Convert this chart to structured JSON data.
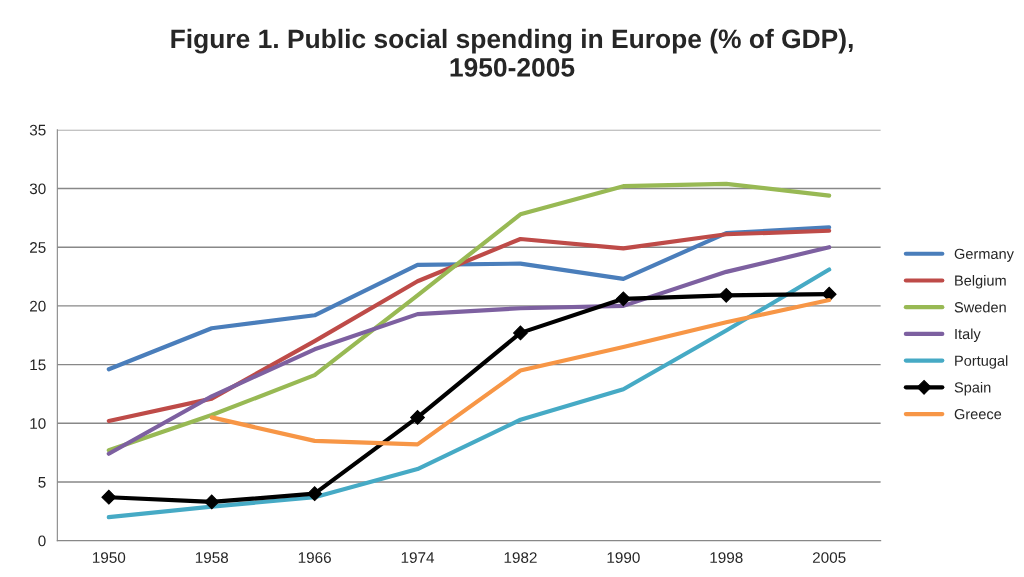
{
  "chart_data": {
    "type": "line",
    "title": "Figure 1. Public social spending in Europe (% of GDP),\n1950-2005",
    "categories": [
      "1950",
      "1958",
      "1966",
      "1974",
      "1982",
      "1990",
      "1998",
      "2005"
    ],
    "series": [
      {
        "name": "Germany",
        "color": "#4a7ebb",
        "values": [
          14.6,
          18.1,
          19.2,
          23.5,
          23.6,
          22.3,
          26.2,
          26.7
        ]
      },
      {
        "name": "Belgium",
        "color": "#be4b48",
        "values": [
          10.2,
          12.1,
          17.0,
          22.1,
          25.7,
          24.9,
          26.1,
          26.4
        ]
      },
      {
        "name": "Sweden",
        "color": "#98b954",
        "values": [
          7.7,
          10.7,
          14.1,
          20.9,
          27.8,
          30.2,
          30.4,
          29.4
        ]
      },
      {
        "name": "Italy",
        "color": "#7d60a0",
        "values": [
          7.4,
          12.3,
          16.3,
          19.3,
          19.8,
          20.0,
          22.9,
          25.0
        ]
      },
      {
        "name": "Portugal",
        "color": "#46aac5",
        "values": [
          2.0,
          2.9,
          3.7,
          6.1,
          10.3,
          12.9,
          17.9,
          23.1
        ]
      },
      {
        "name": "Spain",
        "color": "#000000",
        "marker": "diamond",
        "values": [
          3.7,
          3.3,
          4.0,
          10.5,
          17.7,
          20.6,
          20.9,
          21.0
        ]
      },
      {
        "name": "Greece",
        "color": "#f79646",
        "values": [
          null,
          10.5,
          8.5,
          8.2,
          14.5,
          16.5,
          18.6,
          20.5
        ]
      }
    ],
    "ylim": [
      0,
      35
    ],
    "yticks": [
      0,
      5,
      10,
      15,
      20,
      25,
      30,
      35
    ],
    "grid": "y",
    "legend": "right"
  }
}
